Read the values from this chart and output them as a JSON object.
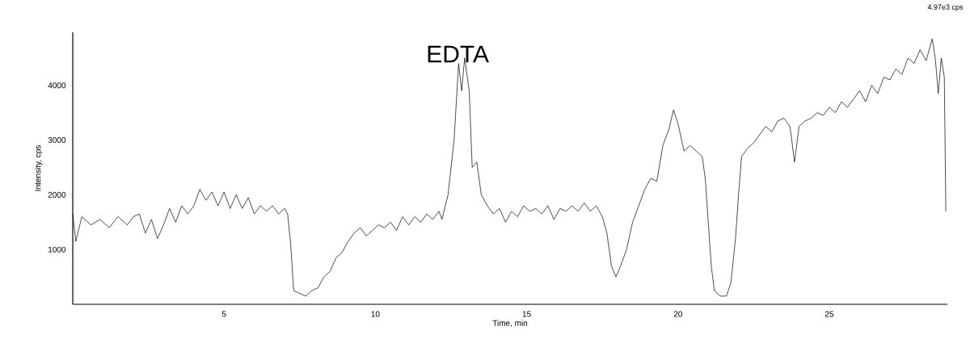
{
  "chart_data": {
    "type": "line",
    "xlabel": "Time, min",
    "ylabel": "Intensity, cps",
    "color": "#000000",
    "line_style": "solid",
    "marker": "none",
    "xlim": [
      0,
      28.9
    ],
    "ylim": [
      0,
      4970
    ],
    "xticks": [
      5,
      10,
      15,
      20,
      25
    ],
    "yticks": [
      1000,
      2000,
      3000,
      4000
    ],
    "annotations": [
      "EDTA",
      "4.97e3 cps"
    ],
    "x": [
      0.0,
      0.1,
      0.3,
      0.6,
      0.9,
      1.2,
      1.5,
      1.8,
      2.0,
      2.2,
      2.4,
      2.6,
      2.8,
      3.0,
      3.2,
      3.4,
      3.6,
      3.8,
      4.0,
      4.2,
      4.4,
      4.6,
      4.8,
      5.0,
      5.2,
      5.4,
      5.6,
      5.8,
      6.0,
      6.2,
      6.4,
      6.6,
      6.8,
      7.0,
      7.1,
      7.2,
      7.3,
      7.5,
      7.7,
      7.9,
      8.1,
      8.3,
      8.5,
      8.7,
      8.9,
      9.1,
      9.3,
      9.5,
      9.7,
      9.9,
      10.1,
      10.3,
      10.5,
      10.7,
      10.9,
      11.1,
      11.3,
      11.5,
      11.7,
      11.9,
      12.1,
      12.2,
      12.4,
      12.6,
      12.75,
      12.85,
      12.95,
      13.1,
      13.2,
      13.35,
      13.5,
      13.7,
      13.9,
      14.1,
      14.3,
      14.5,
      14.7,
      14.9,
      15.1,
      15.3,
      15.5,
      15.7,
      15.9,
      16.1,
      16.3,
      16.5,
      16.7,
      16.9,
      17.1,
      17.3,
      17.5,
      17.65,
      17.8,
      17.95,
      18.1,
      18.3,
      18.5,
      18.7,
      18.9,
      19.1,
      19.3,
      19.5,
      19.7,
      19.85,
      20.0,
      20.2,
      20.4,
      20.6,
      20.8,
      20.9,
      21.0,
      21.1,
      21.2,
      21.4,
      21.6,
      21.75,
      21.9,
      22.0,
      22.1,
      22.3,
      22.5,
      22.7,
      22.9,
      23.1,
      23.3,
      23.5,
      23.7,
      23.85,
      24.0,
      24.2,
      24.4,
      24.6,
      24.8,
      25.0,
      25.2,
      25.4,
      25.6,
      25.8,
      26.0,
      26.2,
      26.4,
      26.6,
      26.8,
      27.0,
      27.2,
      27.4,
      27.6,
      27.8,
      28.0,
      28.2,
      28.4,
      28.5,
      28.6,
      28.7,
      28.8,
      28.85
    ],
    "values": [
      1650,
      1150,
      1600,
      1450,
      1550,
      1400,
      1600,
      1450,
      1600,
      1650,
      1300,
      1550,
      1200,
      1450,
      1750,
      1500,
      1800,
      1650,
      1800,
      2100,
      1900,
      2050,
      1800,
      2050,
      1750,
      2000,
      1750,
      1950,
      1650,
      1800,
      1700,
      1800,
      1650,
      1750,
      1650,
      1100,
      250,
      200,
      150,
      250,
      300,
      500,
      600,
      850,
      950,
      1150,
      1300,
      1400,
      1250,
      1350,
      1450,
      1400,
      1500,
      1350,
      1600,
      1450,
      1600,
      1500,
      1650,
      1550,
      1700,
      1550,
      2000,
      3000,
      4400,
      3900,
      4500,
      3900,
      2500,
      2600,
      2000,
      1800,
      1650,
      1750,
      1500,
      1700,
      1600,
      1800,
      1700,
      1750,
      1650,
      1800,
      1550,
      1750,
      1700,
      1800,
      1700,
      1850,
      1700,
      1800,
      1600,
      1300,
      700,
      500,
      700,
      1000,
      1500,
      1800,
      2100,
      2300,
      2250,
      2900,
      3200,
      3550,
      3300,
      2800,
      2900,
      2800,
      2700,
      2300,
      1500,
      700,
      250,
      150,
      150,
      400,
      1200,
      2000,
      2700,
      2850,
      2950,
      3100,
      3250,
      3150,
      3350,
      3400,
      3250,
      2600,
      3250,
      3350,
      3400,
      3500,
      3450,
      3600,
      3500,
      3700,
      3600,
      3750,
      3900,
      3700,
      4000,
      3850,
      4150,
      4100,
      4300,
      4200,
      4500,
      4400,
      4650,
      4450,
      4850,
      4500,
      3850,
      4500,
      4150,
      1700
    ]
  }
}
